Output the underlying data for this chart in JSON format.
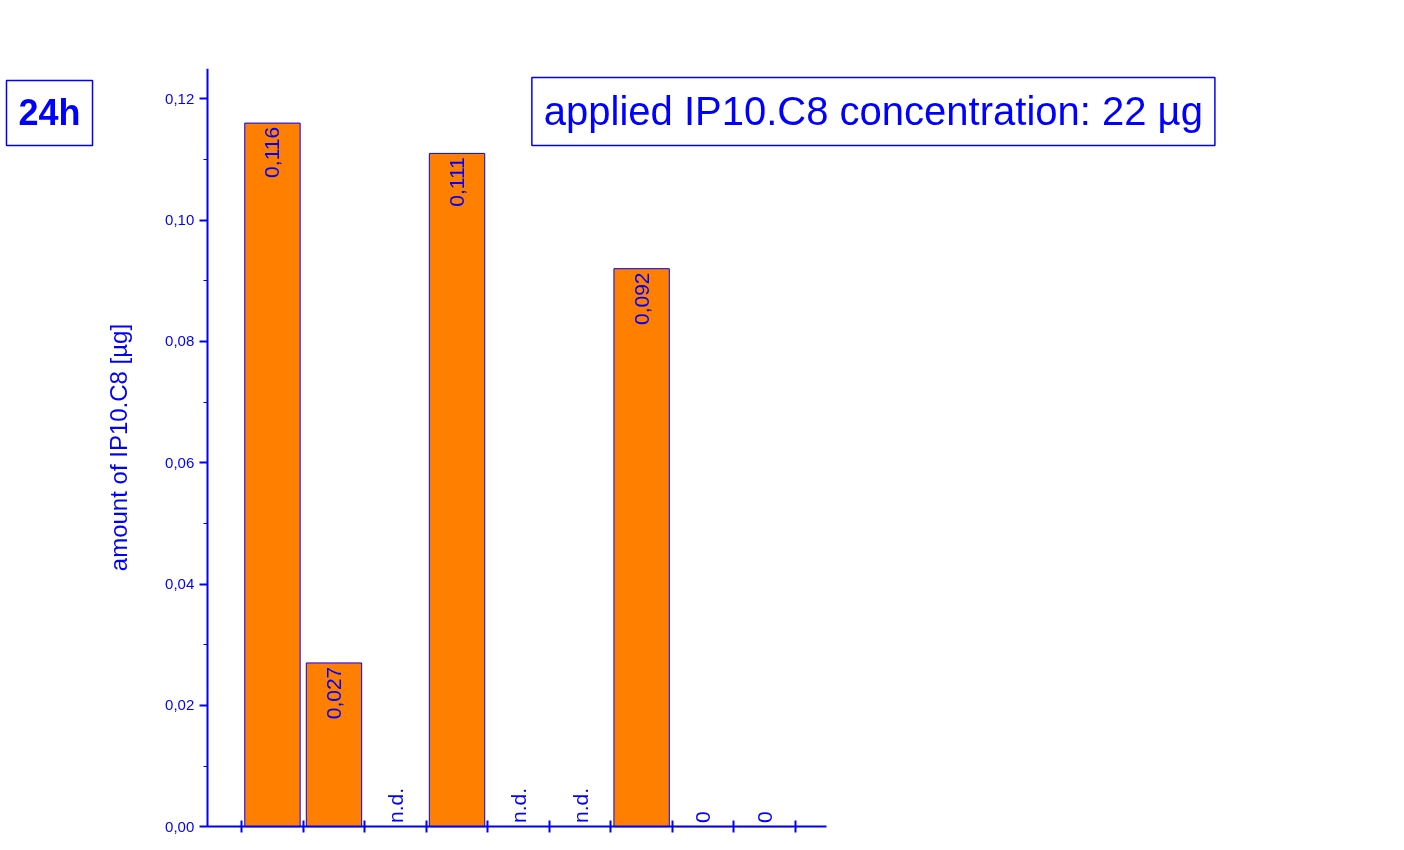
{
  "chart_data": {
    "type": "bar",
    "ylabel": "amount of IP10.C8 [µg]",
    "annotations": [
      "applied IP10.C8 concentration: 22 µg",
      "24h"
    ],
    "categories": [
      null,
      null,
      null,
      null,
      null,
      null,
      null,
      null,
      null
    ],
    "values": [
      0.116,
      0.027,
      null,
      0.111,
      null,
      null,
      0.092,
      0,
      0
    ],
    "value_labels": [
      "0,116",
      "0,027",
      "n.d.",
      "0,111",
      "n.d.",
      "n.d.",
      "0,092",
      "0",
      "0"
    ],
    "color": "#ff7f00",
    "ylim": [
      0,
      0.125
    ],
    "yticks": [
      {
        "value": 0,
        "label": "0,00"
      },
      {
        "value": 0.02,
        "label": "0,02"
      },
      {
        "value": 0.04,
        "label": "0,04"
      },
      {
        "value": 0.06,
        "label": "0,06"
      },
      {
        "value": 0.08,
        "label": "0,08"
      },
      {
        "value": 0.1,
        "label": "0,10"
      },
      {
        "value": 0.12,
        "label": "0,12"
      }
    ],
    "tick_labels": "y",
    "grid": false
  }
}
